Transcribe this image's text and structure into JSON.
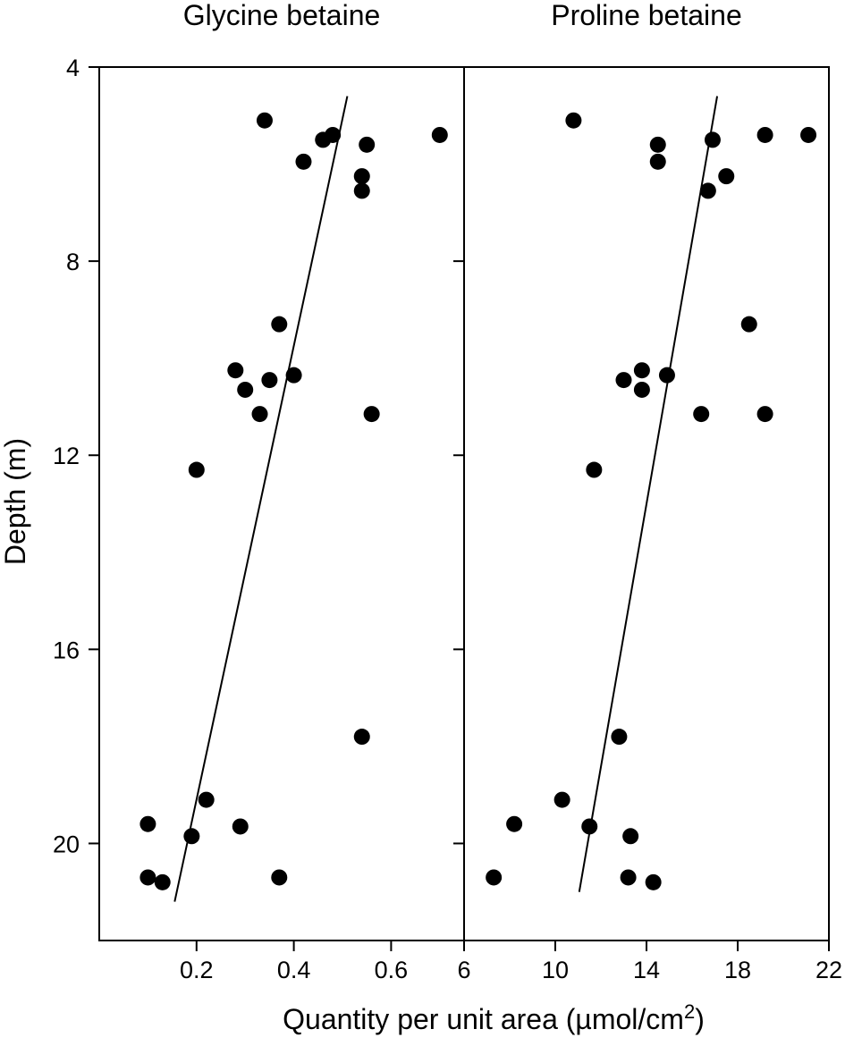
{
  "figure": {
    "ylabel": "Depth (m)",
    "xlabel_main": "Quantity per unit area (µmol/cm",
    "xlabel_sup": "2",
    "xlabel_tail": ")"
  },
  "chart_data": [
    {
      "type": "scatter",
      "title": "Glycine betaine",
      "xlim": [
        0.0,
        0.75
      ],
      "ylim": [
        4,
        22
      ],
      "y_inverted": true,
      "xticks": [
        0.2,
        0.4,
        0.6
      ],
      "xtick_labels": [
        "0.2",
        "0.4",
        "0.6"
      ],
      "yticks": [
        4,
        8,
        12,
        16,
        20
      ],
      "ytick_labels": [
        "4",
        "8",
        "12",
        "16",
        "20"
      ],
      "grid": false,
      "points": [
        {
          "x": 0.34,
          "y": 5.1
        },
        {
          "x": 0.48,
          "y": 5.4
        },
        {
          "x": 0.46,
          "y": 5.5
        },
        {
          "x": 0.7,
          "y": 5.4
        },
        {
          "x": 0.55,
          "y": 5.6
        },
        {
          "x": 0.42,
          "y": 5.95
        },
        {
          "x": 0.54,
          "y": 6.25
        },
        {
          "x": 0.54,
          "y": 6.55
        },
        {
          "x": 0.37,
          "y": 9.3
        },
        {
          "x": 0.28,
          "y": 10.25
        },
        {
          "x": 0.4,
          "y": 10.35
        },
        {
          "x": 0.35,
          "y": 10.45
        },
        {
          "x": 0.3,
          "y": 10.65
        },
        {
          "x": 0.33,
          "y": 11.15
        },
        {
          "x": 0.56,
          "y": 11.15
        },
        {
          "x": 0.2,
          "y": 12.3
        },
        {
          "x": 0.54,
          "y": 17.8
        },
        {
          "x": 0.22,
          "y": 19.1
        },
        {
          "x": 0.1,
          "y": 19.6
        },
        {
          "x": 0.29,
          "y": 19.65
        },
        {
          "x": 0.19,
          "y": 19.85
        },
        {
          "x": 0.37,
          "y": 20.7
        },
        {
          "x": 0.1,
          "y": 20.7
        },
        {
          "x": 0.13,
          "y": 20.8
        }
      ],
      "trendline": [
        {
          "x": 0.155,
          "y": 21.2
        },
        {
          "x": 0.51,
          "y": 4.6
        }
      ]
    },
    {
      "type": "scatter",
      "title": "Proline betaine",
      "xlim": [
        6,
        22
      ],
      "ylim": [
        4,
        22
      ],
      "y_inverted": true,
      "xticks": [
        6,
        10,
        14,
        18,
        22
      ],
      "xtick_labels": [
        "6",
        "10",
        "14",
        "18",
        "22"
      ],
      "yticks": [
        4,
        8,
        12,
        16,
        20
      ],
      "grid": false,
      "points": [
        {
          "x": 10.8,
          "y": 5.1
        },
        {
          "x": 14.5,
          "y": 5.6
        },
        {
          "x": 14.5,
          "y": 5.95
        },
        {
          "x": 16.9,
          "y": 5.5
        },
        {
          "x": 19.2,
          "y": 5.4
        },
        {
          "x": 21.1,
          "y": 5.4
        },
        {
          "x": 17.5,
          "y": 6.25
        },
        {
          "x": 16.7,
          "y": 6.55
        },
        {
          "x": 18.5,
          "y": 9.3
        },
        {
          "x": 13.8,
          "y": 10.25
        },
        {
          "x": 14.9,
          "y": 10.35
        },
        {
          "x": 13.0,
          "y": 10.45
        },
        {
          "x": 13.8,
          "y": 10.65
        },
        {
          "x": 16.4,
          "y": 11.15
        },
        {
          "x": 19.2,
          "y": 11.15
        },
        {
          "x": 11.7,
          "y": 12.3
        },
        {
          "x": 12.8,
          "y": 17.8
        },
        {
          "x": 10.3,
          "y": 19.1
        },
        {
          "x": 8.2,
          "y": 19.6
        },
        {
          "x": 11.5,
          "y": 19.65
        },
        {
          "x": 13.3,
          "y": 19.85
        },
        {
          "x": 7.3,
          "y": 20.7
        },
        {
          "x": 13.2,
          "y": 20.7
        },
        {
          "x": 14.3,
          "y": 20.8
        }
      ],
      "trendline": [
        {
          "x": 11.05,
          "y": 21.0
        },
        {
          "x": 17.1,
          "y": 4.6
        }
      ]
    }
  ]
}
